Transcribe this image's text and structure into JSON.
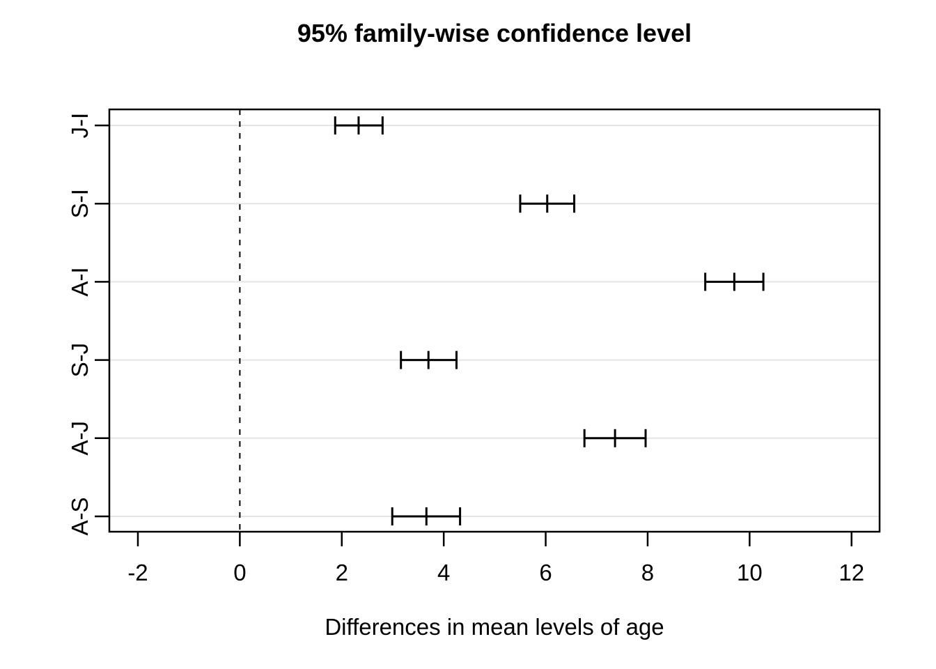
{
  "chart_data": {
    "type": "interval",
    "title": "95% family-wise confidence level",
    "xlabel": "Differences in mean levels of age",
    "ylabel": "",
    "x_ticks": [
      -2,
      0,
      2,
      4,
      6,
      8,
      10,
      12
    ],
    "xlim": [
      -2.56,
      12.55
    ],
    "grid": true,
    "legend": "none",
    "zero_line": {
      "x": 0,
      "style": "dashed"
    },
    "comparisons": [
      {
        "label": "J-I",
        "lower": 1.87,
        "center": 2.33,
        "upper": 2.8
      },
      {
        "label": "S-I",
        "lower": 5.5,
        "center": 6.03,
        "upper": 6.56
      },
      {
        "label": "A-I",
        "lower": 9.13,
        "center": 9.7,
        "upper": 10.27
      },
      {
        "label": "S-J",
        "lower": 3.16,
        "center": 3.7,
        "upper": 4.25
      },
      {
        "label": "A-J",
        "lower": 6.76,
        "center": 7.36,
        "upper": 7.96
      },
      {
        "label": "A-S",
        "lower": 2.99,
        "center": 3.66,
        "upper": 4.32
      }
    ],
    "colors": {
      "interval": "#000000",
      "axis": "#000000",
      "zero_line": "#000000",
      "grid": "#e4e4e4",
      "background": "#ffffff",
      "text": "#000000"
    }
  }
}
